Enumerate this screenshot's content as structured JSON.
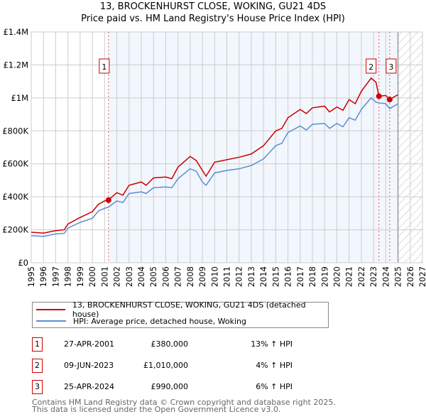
{
  "chart_data": {
    "type": "line",
    "title": "13, BROCKENHURST CLOSE, WOKING, GU21 4DS",
    "subtitle": "Price paid vs. HM Land Registry's House Price Index (HPI)",
    "xlim": [
      1995,
      2027
    ],
    "ylim": [
      0,
      1400000
    ],
    "x_ticks": [
      "1995",
      "1996",
      "1997",
      "1998",
      "1999",
      "2000",
      "2001",
      "2002",
      "2003",
      "2004",
      "2005",
      "2006",
      "2007",
      "2008",
      "2009",
      "2010",
      "2011",
      "2012",
      "2013",
      "2014",
      "2015",
      "2016",
      "2017",
      "2018",
      "2019",
      "2020",
      "2021",
      "2022",
      "2023",
      "2024",
      "2025",
      "2026",
      "2027"
    ],
    "y_ticks": [
      {
        "v": 0,
        "label": "£0"
      },
      {
        "v": 200000,
        "label": "£200K"
      },
      {
        "v": 400000,
        "label": "£400K"
      },
      {
        "v": 600000,
        "label": "£600K"
      },
      {
        "v": 800000,
        "label": "£800K"
      },
      {
        "v": 1000000,
        "label": "£1M"
      },
      {
        "v": 1200000,
        "label": "£1.2M"
      },
      {
        "v": 1400000,
        "label": "£1.4M"
      }
    ],
    "grid": true,
    "series": [
      {
        "name": "13, BROCKENHURST CLOSE, WOKING, GU21 4DS (detached house)",
        "color": "#cc0000",
        "x": [
          1995,
          1996,
          1997,
          1997.7,
          1998,
          1999,
          2000,
          2000.5,
          2001,
          2001.3,
          2002,
          2002.5,
          2003,
          2004,
          2004.4,
          2005,
          2006,
          2006.5,
          2007,
          2008,
          2008.5,
          2009,
          2009.3,
          2010,
          2011,
          2012,
          2013,
          2014,
          2015,
          2015.5,
          2016,
          2017,
          2017.5,
          2018,
          2019,
          2019.4,
          2020,
          2020.5,
          2021,
          2021.5,
          2022,
          2022.8,
          2023.2,
          2023.44,
          2024,
          2024.32,
          2025
        ],
        "y": [
          185000,
          180000,
          195000,
          200000,
          235000,
          275000,
          310000,
          355000,
          375000,
          380000,
          425000,
          410000,
          470000,
          490000,
          470000,
          515000,
          520000,
          510000,
          580000,
          645000,
          620000,
          560000,
          525000,
          610000,
          625000,
          640000,
          660000,
          710000,
          800000,
          815000,
          880000,
          930000,
          905000,
          940000,
          950000,
          915000,
          945000,
          925000,
          990000,
          965000,
          1040000,
          1120000,
          1095000,
          1010000,
          1015000,
          990000,
          1020000
        ]
      },
      {
        "name": "HPI: Average price, detached house, Woking",
        "color": "#5b8fd0",
        "x": [
          1995,
          1996,
          1997,
          1997.7,
          1998,
          1999,
          2000,
          2000.5,
          2001,
          2001.3,
          2002,
          2002.5,
          2003,
          2004,
          2004.4,
          2005,
          2006,
          2006.5,
          2007,
          2008,
          2008.5,
          2009,
          2009.3,
          2010,
          2011,
          2012,
          2013,
          2014,
          2015,
          2015.5,
          2016,
          2017,
          2017.5,
          2018,
          2019,
          2019.4,
          2020,
          2020.5,
          2021,
          2021.5,
          2022,
          2022.8,
          2023.2,
          2023.44,
          2024,
          2024.32,
          2025
        ],
        "y": [
          165000,
          160000,
          175000,
          178000,
          210000,
          245000,
          270000,
          315000,
          330000,
          337000,
          375000,
          365000,
          420000,
          430000,
          420000,
          455000,
          460000,
          455000,
          510000,
          570000,
          555000,
          490000,
          470000,
          545000,
          560000,
          570000,
          590000,
          630000,
          710000,
          725000,
          790000,
          830000,
          805000,
          840000,
          845000,
          815000,
          845000,
          825000,
          880000,
          865000,
          930000,
          1000000,
          975000,
          970000,
          965000,
          935000,
          965000
        ]
      }
    ],
    "sales": [
      {
        "label": "1",
        "x": 2001.32,
        "y": 380000
      },
      {
        "label": "2",
        "x": 2023.44,
        "y": 1010000
      },
      {
        "label": "3",
        "x": 2024.32,
        "y": 990000
      }
    ],
    "shaded_range": [
      2001.32,
      2025
    ],
    "forecast_hatched_from": 2025
  },
  "legend": {
    "items": [
      "13, BROCKENHURST CLOSE, WOKING, GU21 4DS (detached house)",
      "HPI: Average price, detached house, Woking"
    ]
  },
  "table": [
    {
      "n": "1",
      "date": "27-APR-2001",
      "price": "£380,000",
      "hpi": "13% ↑ HPI"
    },
    {
      "n": "2",
      "date": "09-JUN-2023",
      "price": "£1,010,000",
      "hpi": "4% ↑ HPI"
    },
    {
      "n": "3",
      "date": "25-APR-2024",
      "price": "£990,000",
      "hpi": "6% ↑ HPI"
    }
  ],
  "footer": [
    "Contains HM Land Registry data © Crown copyright and database right 2025.",
    "This data is licensed under the Open Government Licence v3.0."
  ]
}
